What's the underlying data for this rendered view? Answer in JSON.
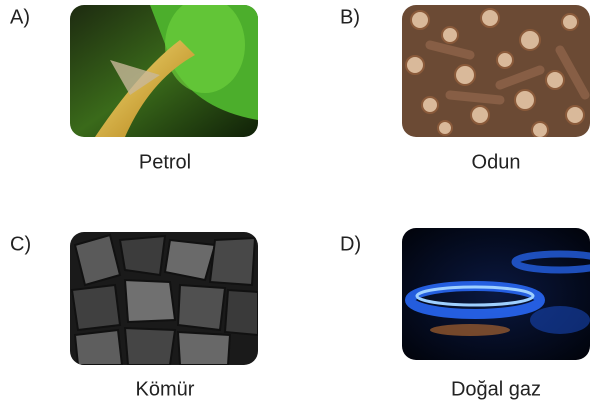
{
  "options": [
    {
      "letter": "A)",
      "label": "Petrol"
    },
    {
      "letter": "B)",
      "label": "Odun"
    },
    {
      "letter": "C)",
      "label": "Kömür"
    },
    {
      "letter": "D)",
      "label": "Doğal gaz"
    }
  ]
}
